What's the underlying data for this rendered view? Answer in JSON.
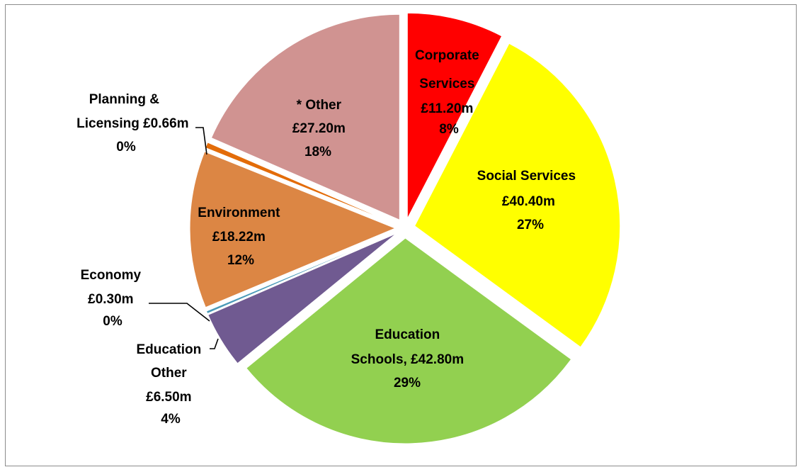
{
  "chart_data": {
    "type": "pie",
    "title": "",
    "slices": [
      {
        "key": "corporate",
        "label_lines": [
          "Corporate",
          "Services",
          "£11.20m",
          "8%"
        ],
        "value": 11.2,
        "percent": "8%",
        "color": "#ff0000"
      },
      {
        "key": "social",
        "label_lines": [
          "Social Services",
          "£40.40m",
          "27%"
        ],
        "value": 40.4,
        "percent": "27%",
        "color": "#ffff00"
      },
      {
        "key": "schools",
        "label_lines": [
          "Education",
          "Schools,  £42.80m",
          "29%"
        ],
        "value": 42.8,
        "percent": "29%",
        "color": "#92d050"
      },
      {
        "key": "educationother",
        "label_lines": [
          "Education",
          "Other",
          "£6.50m",
          "4%"
        ],
        "value": 6.5,
        "percent": "4%",
        "color": "#705a91"
      },
      {
        "key": "economy",
        "label_lines": [
          "Economy",
          "£0.30m",
          "0%"
        ],
        "value": 0.3,
        "percent": "0%",
        "color": "#4a9ab8"
      },
      {
        "key": "environment",
        "label_lines": [
          "Environment",
          "£18.22m",
          "12%"
        ],
        "value": 18.22,
        "percent": "12%",
        "color": "#dc8644"
      },
      {
        "key": "planning",
        "label_lines": [
          "Planning &",
          "Licensing  £0.66m",
          "0%"
        ],
        "value": 0.66,
        "percent": "0%",
        "color": "#e36c09"
      },
      {
        "key": "other",
        "label_lines": [
          "* Other",
          "£27.20m",
          "18%"
        ],
        "value": 27.2,
        "percent": "18%",
        "color": "#d09391"
      }
    ]
  }
}
